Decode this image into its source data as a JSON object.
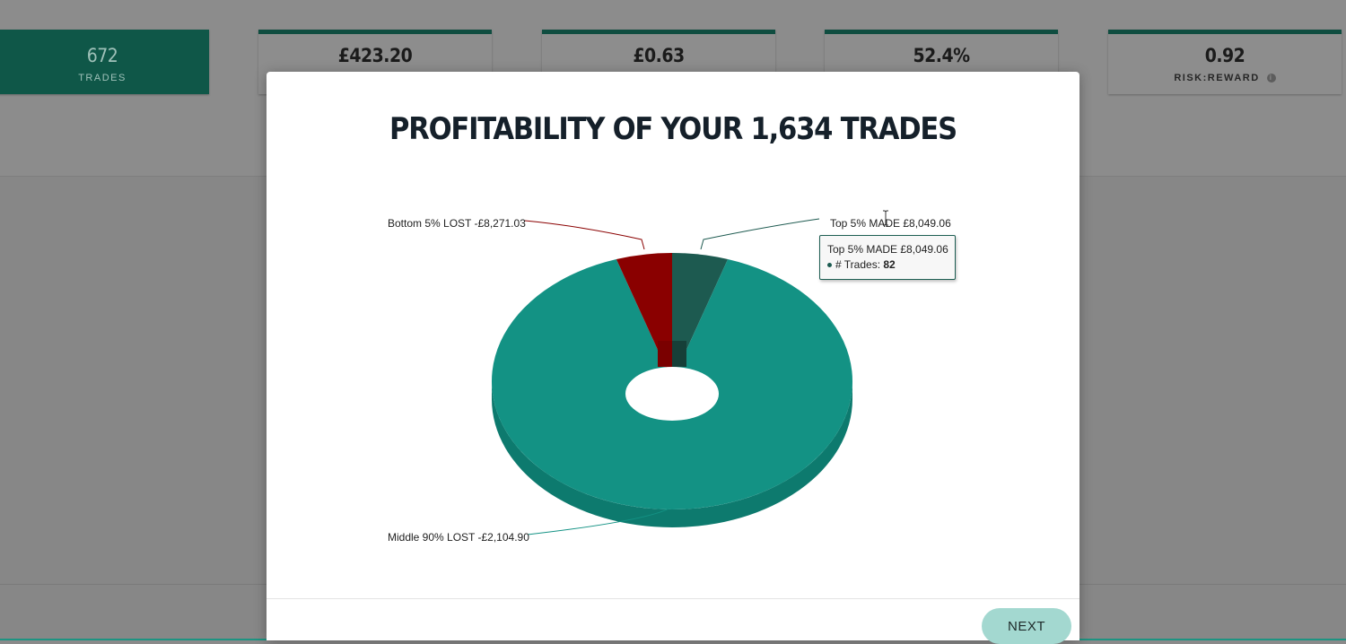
{
  "stats": [
    {
      "value": "672",
      "label": "TRADES",
      "active": true
    },
    {
      "value": "£423.20",
      "label": "",
      "active": false
    },
    {
      "value": "£0.63",
      "label": "",
      "active": false
    },
    {
      "value": "52.4%",
      "label": "",
      "active": false
    },
    {
      "value": "0.92",
      "label": "RISK:REWARD",
      "active": false,
      "info_icon": "info-icon"
    }
  ],
  "modal": {
    "title": "PROFITABILITY OF YOUR 1,634 TRADES",
    "next_label": "NEXT"
  },
  "tooltip": {
    "title": "Top 5% MADE £8,049.06",
    "series_label": "# Trades:",
    "value": "82"
  },
  "chart_data": {
    "type": "pie",
    "variant": "3d-donut",
    "title": "PROFITABILITY OF YOUR 1,634 TRADES",
    "slices": [
      {
        "label": "Top 5% MADE £8,049.06",
        "value": 5,
        "trades": 82,
        "color": "#1d5a50"
      },
      {
        "label": "Middle 90% LOST -£2,104.90",
        "value": 90,
        "color": "#139284"
      },
      {
        "label": "Bottom 5% LOST -£8,271.03",
        "value": 5,
        "color": "#8a0000"
      }
    ],
    "legend": "none"
  },
  "colors": {
    "accent_dark": "#0f5748",
    "accent_light": "#a3d8d0",
    "teal": "#139284",
    "loss_red": "#8a0000"
  }
}
